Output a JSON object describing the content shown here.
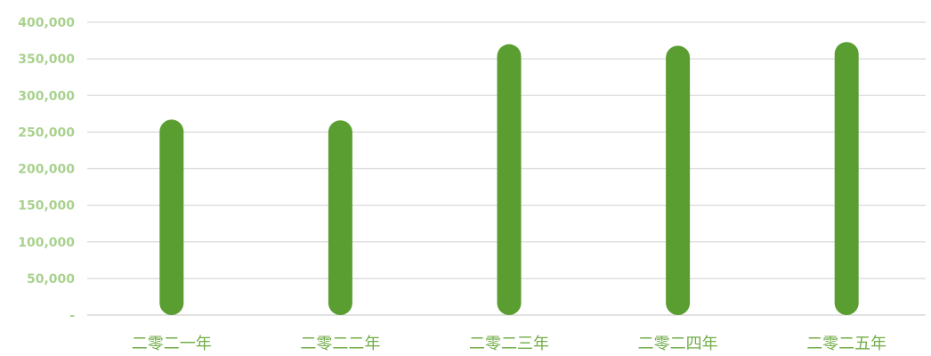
{
  "chart_data": {
    "type": "bar",
    "categories": [
      "二零二一年",
      "二零二二年",
      "二零二三年",
      "二零二四年",
      "二零二五年"
    ],
    "values": [
      267000,
      266000,
      370000,
      368000,
      373000
    ],
    "ylim": [
      0,
      400000
    ],
    "yticks": [
      0,
      50000,
      100000,
      150000,
      200000,
      250000,
      300000,
      350000,
      400000
    ],
    "ytick_labels": [
      "-",
      "50,000",
      "100,000",
      "150,000",
      "200,000",
      "250,000",
      "300,000",
      "350,000",
      "400,000"
    ],
    "grid": true,
    "legend": "none",
    "colors": {
      "bar": "#5a9e32",
      "ytick": "#a9d18e",
      "xtick": "#70ad47",
      "grid": "#d9d9d9"
    }
  }
}
